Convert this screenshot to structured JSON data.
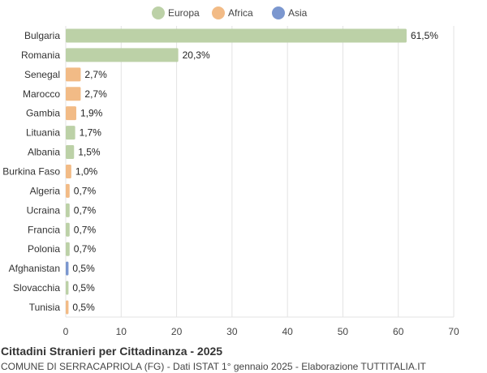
{
  "chart_data": {
    "type": "bar",
    "orientation": "horizontal",
    "title": "Cittadini Stranieri per Cittadinanza - 2025",
    "subtitle": "COMUNE DI SERRACAPRIOLA (FG) - Dati ISTAT 1° gennaio 2025 - Elaborazione TUTTITALIA.IT",
    "xlim": [
      0,
      70
    ],
    "xticks": [
      0,
      10,
      20,
      30,
      40,
      50,
      60,
      70
    ],
    "grid": true,
    "legend_position": "top-center",
    "legend": [
      {
        "name": "Europa",
        "color": "#bcd1a7"
      },
      {
        "name": "Africa",
        "color": "#f2bb86"
      },
      {
        "name": "Asia",
        "color": "#7b97cf"
      }
    ],
    "categories": [
      "Bulgaria",
      "Romania",
      "Senegal",
      "Marocco",
      "Gambia",
      "Lituania",
      "Albania",
      "Burkina Faso",
      "Algeria",
      "Ucraina",
      "Francia",
      "Polonia",
      "Afghanistan",
      "Slovacchia",
      "Tunisia"
    ],
    "values": [
      61.5,
      20.3,
      2.7,
      2.7,
      1.9,
      1.7,
      1.5,
      1.0,
      0.7,
      0.7,
      0.7,
      0.7,
      0.5,
      0.5,
      0.5
    ],
    "value_labels": [
      "61,5%",
      "20,3%",
      "2,7%",
      "2,7%",
      "1,9%",
      "1,7%",
      "1,5%",
      "1,0%",
      "0,7%",
      "0,7%",
      "0,7%",
      "0,7%",
      "0,5%",
      "0,5%",
      "0,5%"
    ],
    "groups": [
      "Europa",
      "Europa",
      "Africa",
      "Africa",
      "Africa",
      "Europa",
      "Europa",
      "Africa",
      "Africa",
      "Europa",
      "Europa",
      "Europa",
      "Asia",
      "Europa",
      "Africa"
    ]
  }
}
